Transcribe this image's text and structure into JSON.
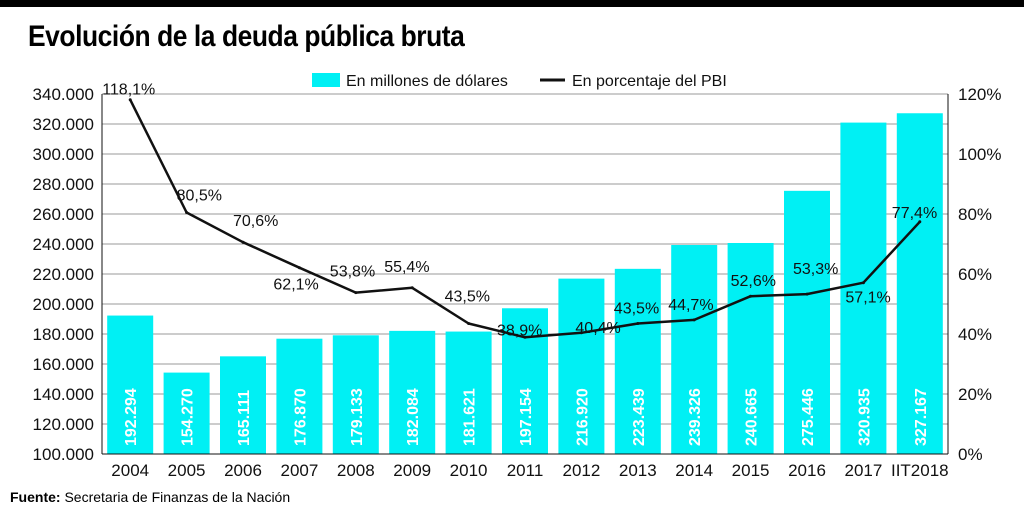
{
  "title": "Evolución de la deuda pública bruta",
  "source": {
    "label": "Fuente:",
    "text": " Secretaria de Finanzas de la Nación"
  },
  "colors": {
    "bar": "#00f0f4",
    "line": "#111111",
    "grid": "#9a9a9a",
    "bar_label": "#ffffff"
  },
  "chart_data": {
    "type": "bar",
    "title": "Evolución de la deuda pública bruta",
    "categories": [
      "2004",
      "2005",
      "2006",
      "2007",
      "2008",
      "2009",
      "2010",
      "2011",
      "2012",
      "2013",
      "2014",
      "2015",
      "2016",
      "2017",
      "IIT2018"
    ],
    "series": [
      {
        "name": "En millones de dólares",
        "kind": "bar",
        "axis": "left",
        "values": [
          192294,
          154270,
          165111,
          176870,
          179133,
          182084,
          181621,
          197154,
          216920,
          223439,
          239326,
          240665,
          275446,
          320935,
          327167
        ],
        "labels": [
          "192.294",
          "154.270",
          "165.111",
          "176.870",
          "179.133",
          "182.084",
          "181.621",
          "197.154",
          "216.920",
          "223.439",
          "239.326",
          "240.665",
          "275.446",
          "320.935",
          "327.167"
        ]
      },
      {
        "name": "En porcentaje del PBI",
        "kind": "line",
        "axis": "right",
        "values": [
          118.1,
          80.5,
          70.6,
          62.1,
          53.8,
          55.4,
          43.5,
          38.9,
          40.4,
          43.5,
          44.7,
          52.6,
          53.3,
          57.1,
          77.4
        ],
        "labels": [
          "118,1%",
          "80,5%",
          "70,6%",
          "62,1%",
          "53,8%",
          "55,4%",
          "43,5%",
          "38,9%",
          "40,4%",
          "43,5%",
          "44,7%",
          "52,6%",
          "53,3%",
          "57,1%",
          "77,4%"
        ]
      }
    ],
    "y_left": {
      "range": [
        100000,
        340000
      ],
      "ticks": [
        100000,
        120000,
        140000,
        160000,
        180000,
        200000,
        220000,
        240000,
        260000,
        280000,
        300000,
        320000,
        340000
      ],
      "tick_labels": [
        "100.000",
        "120.000",
        "140.000",
        "160.000",
        "180.000",
        "200.000",
        "220.000",
        "240.000",
        "260.000",
        "280.000",
        "300.000",
        "320.000",
        "340.000"
      ]
    },
    "y_right": {
      "range": [
        0,
        120
      ],
      "ticks": [
        0,
        20,
        40,
        60,
        80,
        100,
        120
      ],
      "tick_labels": [
        "0%",
        "20%",
        "40%",
        "60%",
        "80%",
        "100%",
        "120%"
      ]
    },
    "grid": true,
    "legend": {
      "placement": "top-center",
      "entries": [
        "En millones de dólares",
        "En porcentaje del PBI"
      ]
    }
  }
}
